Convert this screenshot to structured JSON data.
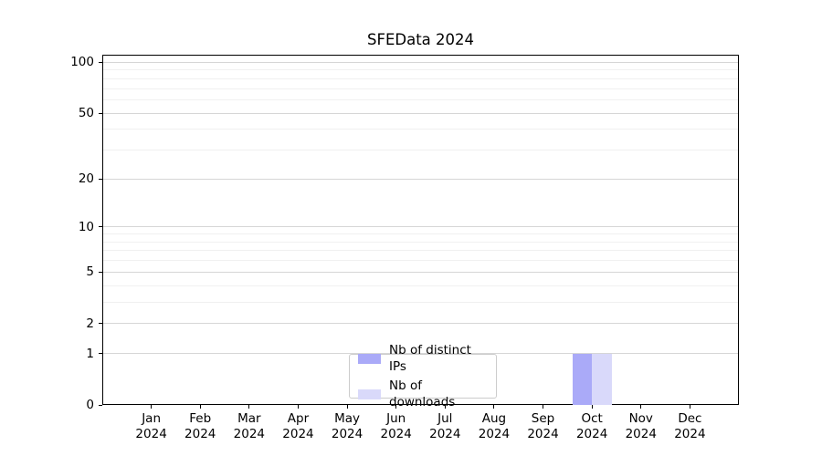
{
  "chart_data": {
    "type": "bar",
    "title": "SFEData 2024",
    "categories": [
      "Jan",
      "Feb",
      "Mar",
      "Apr",
      "May",
      "Jun",
      "Jul",
      "Aug",
      "Sep",
      "Oct",
      "Nov",
      "Dec"
    ],
    "year_label": "2024",
    "series": [
      {
        "name": "Nb of distinct IPs",
        "color": "#aaaaf8",
        "values": [
          0,
          0,
          0,
          0,
          0,
          0,
          0,
          0,
          0,
          1,
          0,
          0
        ]
      },
      {
        "name": "Nb of downloads",
        "color": "#d9d9fa",
        "values": [
          0,
          0,
          0,
          0,
          0,
          0,
          0,
          0,
          0,
          1,
          0,
          0
        ]
      }
    ],
    "yticks": [
      0,
      1,
      2,
      5,
      10,
      20,
      50,
      100
    ],
    "ylim": [
      0,
      110
    ],
    "yscale": "log1p",
    "xlabel": "",
    "ylabel": "",
    "legend_position": "lower center",
    "grid": "horizontal major+minor"
  },
  "colors": {
    "major_grid": "#d6d6d6",
    "minor_grid": "#f0f0f0",
    "axis": "#000000",
    "text": "#000000",
    "legend_border": "#cccccc",
    "background": "#ffffff"
  }
}
